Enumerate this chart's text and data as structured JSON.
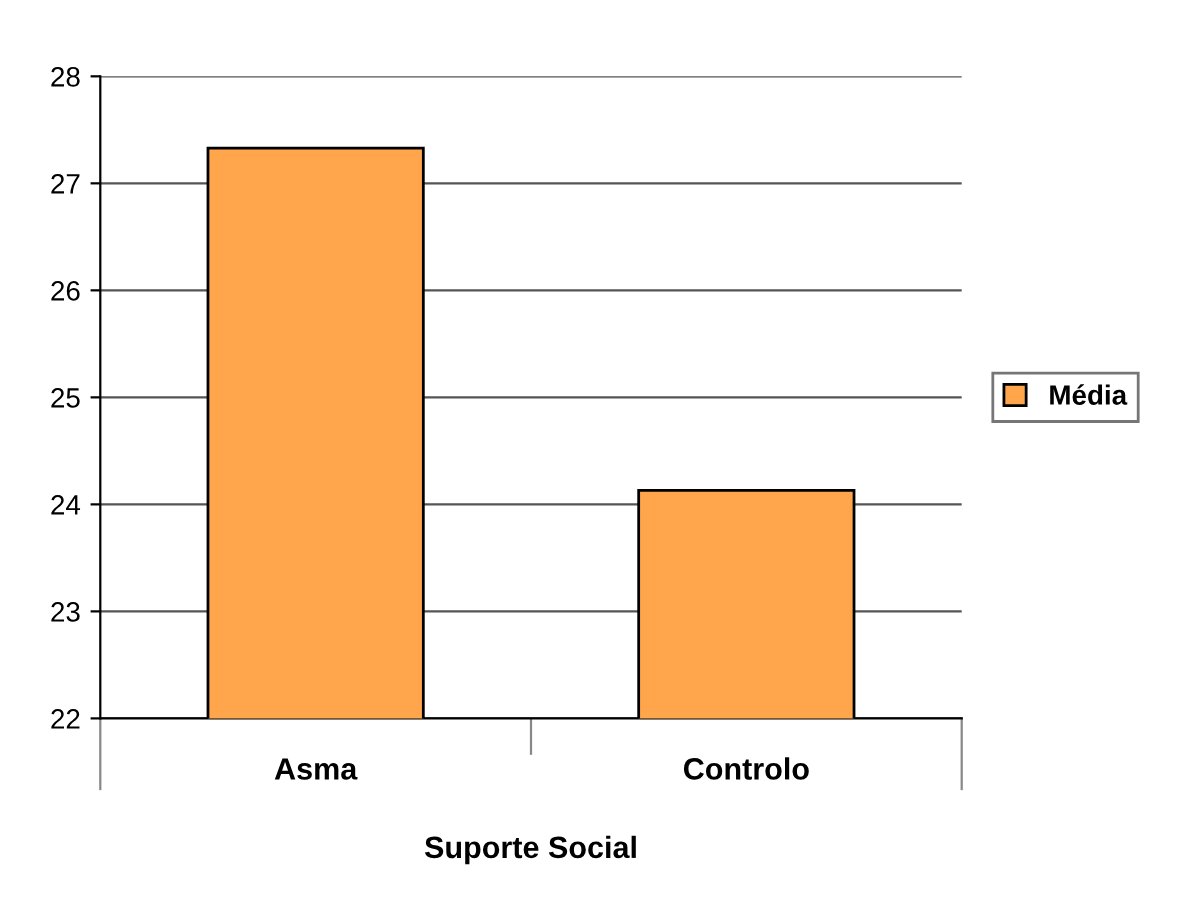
{
  "chart_data": {
    "type": "bar",
    "xlabel": "Suporte Social",
    "categories": [
      "Asma",
      "Controlo"
    ],
    "series": [
      {
        "name": "Média",
        "color": "#ffa64d",
        "values": [
          27.33,
          24.13
        ]
      }
    ],
    "ylim": [
      22,
      28
    ],
    "yticks": [
      22,
      23,
      24,
      25,
      26,
      27,
      28
    ],
    "grid": "y",
    "legend": "right"
  }
}
